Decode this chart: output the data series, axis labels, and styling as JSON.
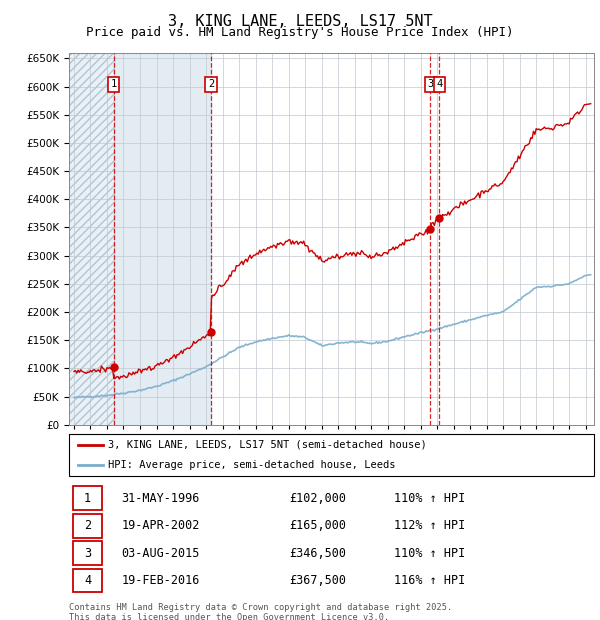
{
  "title": "3, KING LANE, LEEDS, LS17 5NT",
  "subtitle": "Price paid vs. HM Land Registry's House Price Index (HPI)",
  "title_fontsize": 11,
  "subtitle_fontsize": 9,
  "sales": [
    {
      "num": 1,
      "date_str": "31-MAY-1996",
      "date_x": 1996.41,
      "price": 102000,
      "pct": "110%"
    },
    {
      "num": 2,
      "date_str": "19-APR-2002",
      "date_x": 2002.3,
      "price": 165000,
      "pct": "112%"
    },
    {
      "num": 3,
      "date_str": "03-AUG-2015",
      "date_x": 2015.59,
      "price": 346500,
      "pct": "110%"
    },
    {
      "num": 4,
      "date_str": "19-FEB-2016",
      "date_x": 2016.13,
      "price": 367500,
      "pct": "116%"
    }
  ],
  "legend_entries": [
    "3, KING LANE, LEEDS, LS17 5NT (semi-detached house)",
    "HPI: Average price, semi-detached house, Leeds"
  ],
  "sale_info": [
    {
      "num": 1,
      "date": "31-MAY-1996",
      "price": "£102,000",
      "pct": "110% ↑ HPI"
    },
    {
      "num": 2,
      "date": "19-APR-2002",
      "price": "£165,000",
      "pct": "112% ↑ HPI"
    },
    {
      "num": 3,
      "date": "03-AUG-2015",
      "price": "£346,500",
      "pct": "110% ↑ HPI"
    },
    {
      "num": 4,
      "date": "19-FEB-2016",
      "price": "£367,500",
      "pct": "116% ↑ HPI"
    }
  ],
  "footer": "Contains HM Land Registry data © Crown copyright and database right 2025.\nThis data is licensed under the Open Government Licence v3.0.",
  "red_color": "#cc0000",
  "blue_color": "#7aadcb",
  "shade_color": "#dce8f0",
  "background_color": "#ffffff",
  "grid_color": "#c0c8d0",
  "ylim": [
    0,
    660000
  ],
  "xlim": [
    1993.7,
    2025.5
  ]
}
